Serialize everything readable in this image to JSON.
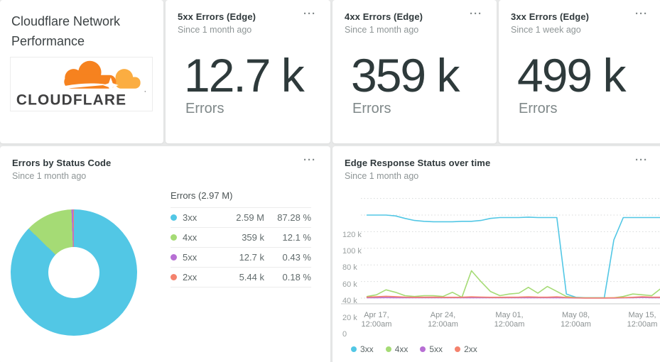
{
  "ui": {
    "menu_glyph": "···"
  },
  "header_card": {
    "title": "Cloudflare Network Performance",
    "logo_text": "CLOUDFLARE"
  },
  "billboards": [
    {
      "title": "5xx Errors (Edge)",
      "subtitle": "Since 1 month ago",
      "value": "12.7 k",
      "unit": "Errors"
    },
    {
      "title": "4xx Errors (Edge)",
      "subtitle": "Since 1 month ago",
      "value": "359 k",
      "unit": "Errors"
    },
    {
      "title": "3xx Errors (Edge)",
      "subtitle": "Since 1 week ago",
      "value": "499 k",
      "unit": "Errors"
    }
  ],
  "donut_card": {
    "title": "Errors by Status Code",
    "subtitle": "Since 1 month ago",
    "table_title": "Errors (2.97 M)",
    "rows": [
      {
        "label": "3xx",
        "value": "2.59 M",
        "percent": "87.28 %",
        "color": "#52C7E5"
      },
      {
        "label": "4xx",
        "value": "359 k",
        "percent": "12.1 %",
        "color": "#A5DB75"
      },
      {
        "label": "5xx",
        "value": "12.7 k",
        "percent": "0.43 %",
        "color": "#B76FD4"
      },
      {
        "label": "2xx",
        "value": "5.44 k",
        "percent": "0.18 %",
        "color": "#F4826D"
      }
    ]
  },
  "timeseries_card": {
    "title": "Edge Response Status over time",
    "subtitle": "Since 1 month ago",
    "legend": [
      {
        "label": "3xx",
        "color": "#52C7E5"
      },
      {
        "label": "4xx",
        "color": "#A5DB75"
      },
      {
        "label": "5xx",
        "color": "#B76FD4"
      },
      {
        "label": "2xx",
        "color": "#F4826D"
      }
    ]
  },
  "chart_data": [
    {
      "type": "pie",
      "title": "Errors by Status Code",
      "subtitle": "Since 1 month ago",
      "total_label": "Errors (2.97 M)",
      "labels": [
        "3xx",
        "4xx",
        "5xx",
        "2xx"
      ],
      "values": [
        2590000,
        359000,
        12700,
        5440
      ],
      "display_values": [
        "2.59 M",
        "359 k",
        "12.7 k",
        "5.44 k"
      ],
      "percents": [
        87.28,
        12.1,
        0.43,
        0.18
      ],
      "colors": [
        "#52C7E5",
        "#A5DB75",
        "#B76FD4",
        "#F4826D"
      ],
      "donut_hole": true,
      "legend_position": "right"
    },
    {
      "type": "line",
      "title": "Edge Response Status over time",
      "subtitle": "Since 1 month ago",
      "ylim": [
        0,
        120000
      ],
      "grid": "horizontal-dotted",
      "legend_position": "bottom",
      "x_start": "Apr 16, 12:00am",
      "x_step": "1 day",
      "ytick_values": [
        120000,
        100000,
        80000,
        60000,
        40000,
        20000,
        0
      ],
      "ytick_labels": [
        "120 k",
        "100 k",
        "80 k",
        "60 k",
        "40 k",
        "20 k",
        "0"
      ],
      "xticks": [
        {
          "day": 1,
          "line1": "Apr 17,",
          "line2": "12:00am"
        },
        {
          "day": 8,
          "line1": "Apr 24,",
          "line2": "12:00am"
        },
        {
          "day": 15,
          "line1": "May 01,",
          "line2": "12:00am"
        },
        {
          "day": 22,
          "line1": "May 08,",
          "line2": "12:00am"
        },
        {
          "day": 29,
          "line1": "May 15,",
          "line2": "12:00am"
        }
      ],
      "series": [
        {
          "name": "3xx",
          "color": "#52C7E5",
          "values": [
            100000,
            100000,
            100000,
            99000,
            96000,
            93500,
            92500,
            92000,
            92000,
            92000,
            92500,
            92500,
            93500,
            96000,
            97000,
            97000,
            97000,
            97500,
            97000,
            97000,
            97000,
            5000,
            1000,
            500,
            500,
            500,
            70000,
            97000,
            97000,
            97000,
            97000,
            97000
          ]
        },
        {
          "name": "4xx",
          "color": "#A5DB75",
          "values": [
            2000,
            4000,
            10000,
            7000,
            3000,
            2000,
            3000,
            3000,
            2000,
            7000,
            1000,
            33000,
            20000,
            8000,
            3000,
            5000,
            6000,
            13000,
            6000,
            14000,
            8000,
            2000,
            500,
            300,
            300,
            300,
            300,
            2000,
            5000,
            4000,
            3000,
            12000
          ]
        },
        {
          "name": "5xx",
          "color": "#B76FD4",
          "values": [
            400,
            500,
            600,
            500,
            400,
            400,
            400,
            400,
            400,
            400,
            400,
            600,
            500,
            400,
            400,
            400,
            400,
            500,
            400,
            400,
            400,
            300,
            200,
            100,
            100,
            100,
            100,
            300,
            400,
            800,
            500,
            400
          ]
        },
        {
          "name": "2xx",
          "color": "#F4826D",
          "values": [
            1200,
            1600,
            2200,
            1800,
            1300,
            1000,
            1100,
            1200,
            1000,
            1000,
            1100,
            1500,
            1300,
            1000,
            1000,
            1100,
            1200,
            1500,
            1200,
            1100,
            1500,
            800,
            300,
            200,
            200,
            200,
            300,
            600,
            1000,
            1600,
            1200,
            1100
          ]
        }
      ]
    }
  ]
}
